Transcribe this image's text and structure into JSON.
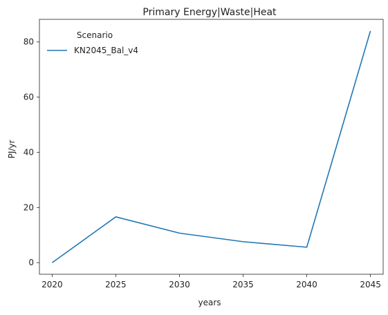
{
  "chart_data": {
    "type": "line",
    "title": "Primary Energy|Waste|Heat",
    "xlabel": "years",
    "ylabel": "PJ/yr",
    "x": [
      2020,
      2025,
      2030,
      2035,
      2040,
      2045
    ],
    "x_ticks": [
      2020,
      2025,
      2030,
      2035,
      2040,
      2045
    ],
    "y_ticks": [
      0,
      20,
      40,
      60,
      80
    ],
    "xlim": [
      2019.0,
      2046.0
    ],
    "ylim": [
      -4.2,
      88.2
    ],
    "grid": false,
    "legend": {
      "title": "Scenario",
      "placement": "top-left"
    },
    "series": [
      {
        "name": "KN2045_Bal_v4",
        "color": "#1f77b4",
        "values": [
          0.0,
          16.6,
          10.7,
          7.6,
          5.6,
          84.0
        ]
      }
    ]
  }
}
